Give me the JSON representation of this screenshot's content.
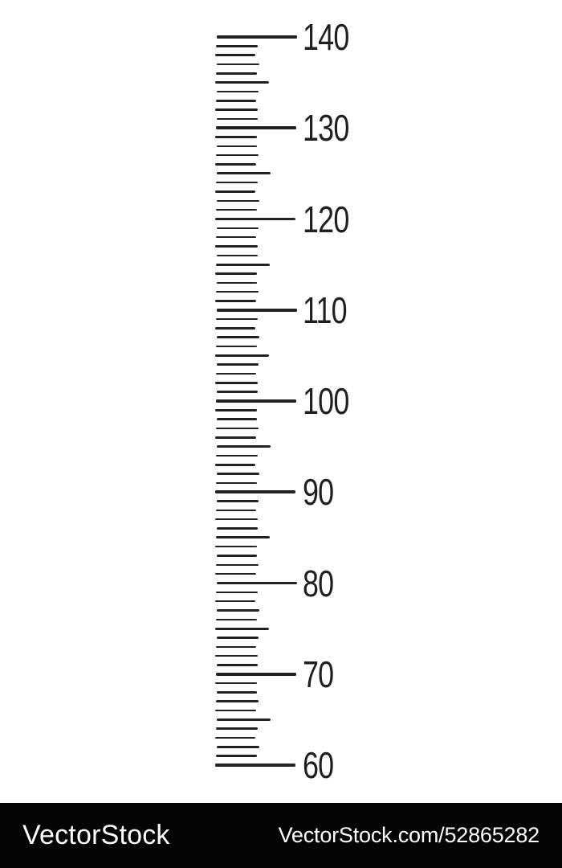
{
  "ruler": {
    "type": "vertical-scale",
    "unit_min": 60,
    "unit_max": 140,
    "minor_step": 1,
    "medium_step": 5,
    "major_step": 10,
    "major_labels": [
      "140",
      "130",
      "120",
      "110",
      "100",
      "90",
      "80",
      "70",
      "60"
    ],
    "tick_color": "#222222",
    "label_color": "#1f1f1f"
  },
  "watermark": {
    "brand": "VectorStock",
    "url": "VectorStock.com/52865282",
    "bar_color": "#050505",
    "text_color": "#ffffff"
  }
}
